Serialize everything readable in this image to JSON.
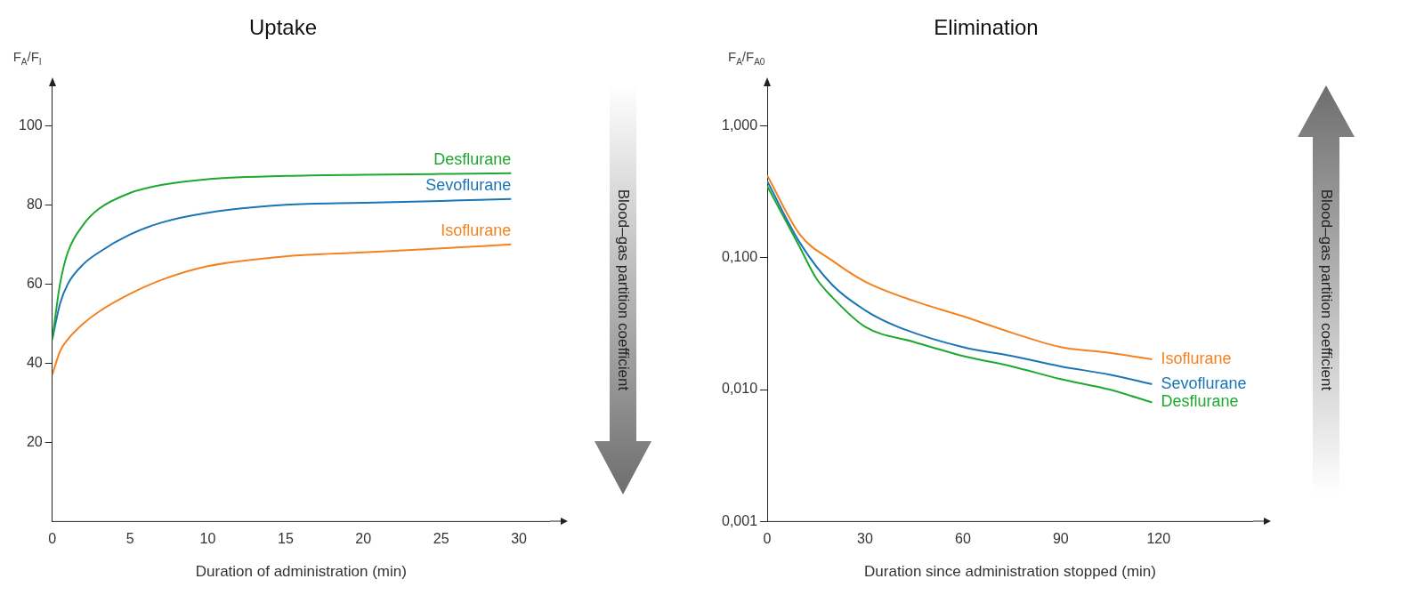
{
  "chart_data": [
    {
      "type": "line",
      "title": "Uptake",
      "xlabel": "Duration of administration (min)",
      "ylabel": "F$_{A}$/F$_{I}$",
      "annotations": [
        "Blood–gas partition coefficient"
      ],
      "xlim": [
        0,
        32
      ],
      "xticks": [
        0,
        5,
        10,
        15,
        20,
        25,
        30
      ],
      "ylim": [
        0,
        110
      ],
      "yticks": [
        20,
        40,
        60,
        80,
        100
      ],
      "legend": false,
      "marker": "none",
      "series": [
        {
          "name": "Desflurane",
          "color": "#1ea82f",
          "x": [
            0,
            0.5,
            1,
            2,
            3,
            5,
            7,
            10,
            15,
            20,
            25,
            29.5
          ],
          "values": [
            46,
            60,
            68,
            75,
            79,
            83,
            85,
            86.5,
            87.3,
            87.6,
            87.8,
            88
          ]
        },
        {
          "name": "Sevoflurane",
          "color": "#1a75b4",
          "x": [
            0,
            0.5,
            1,
            2,
            3,
            5,
            7,
            10,
            15,
            20,
            25,
            29.5
          ],
          "values": [
            46,
            55,
            60,
            65,
            68,
            72.5,
            75.5,
            78,
            80,
            80.5,
            81,
            81.5
          ]
        },
        {
          "name": "Isoflurane",
          "color": "#f5821f",
          "x": [
            0,
            0.5,
            1,
            2,
            3,
            5,
            7,
            10,
            15,
            20,
            25,
            29.5
          ],
          "values": [
            37,
            43,
            46,
            50,
            53,
            57.5,
            61,
            64.5,
            67,
            68,
            69,
            70
          ]
        }
      ]
    },
    {
      "type": "line",
      "title": "Elimination",
      "xlabel": "Duration since administration stopped (min)",
      "ylabel": "F$_{A}$/F$_{A0}$",
      "annotations": [
        "Blood–gas partition coefficient"
      ],
      "log": "y",
      "xlim": [
        0,
        149
      ],
      "xticks": [
        0,
        30,
        60,
        90,
        120
      ],
      "ylim": [
        0.001,
        2
      ],
      "yticks": [
        {
          "value": 0.001,
          "label": "0,001"
        },
        {
          "value": 0.01,
          "label": "0,010"
        },
        {
          "value": 0.1,
          "label": "0,100"
        },
        {
          "value": 1,
          "label": "1,000"
        }
      ],
      "legend": false,
      "marker": "none",
      "series": [
        {
          "name": "Isoflurane",
          "color": "#f5821f",
          "x": [
            0,
            10,
            20,
            30,
            45,
            60,
            75,
            90,
            105,
            118
          ],
          "values": [
            0.42,
            0.15,
            0.095,
            0.066,
            0.047,
            0.036,
            0.027,
            0.021,
            0.019,
            0.017
          ]
        },
        {
          "name": "Sevoflurane",
          "color": "#1a75b4",
          "x": [
            0,
            10,
            20,
            30,
            40,
            60,
            75,
            90,
            105,
            118
          ],
          "values": [
            0.38,
            0.13,
            0.062,
            0.04,
            0.03,
            0.021,
            0.018,
            0.015,
            0.013,
            0.011
          ]
        },
        {
          "name": "Desflurane",
          "color": "#1ea82f",
          "x": [
            0,
            10,
            15,
            20,
            30,
            45,
            60,
            75,
            90,
            105,
            118
          ],
          "values": [
            0.35,
            0.12,
            0.07,
            0.05,
            0.03,
            0.023,
            0.018,
            0.015,
            0.012,
            0.01,
            0.008
          ]
        }
      ]
    }
  ]
}
